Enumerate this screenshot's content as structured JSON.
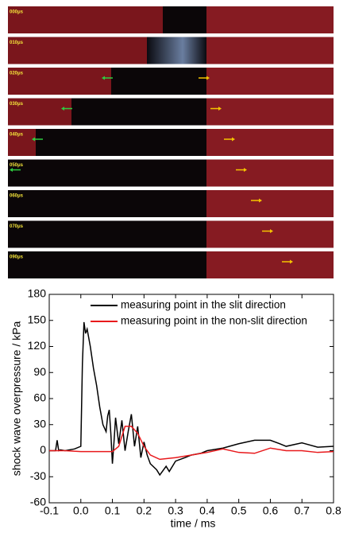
{
  "frames": [
    {
      "label": "000μs"
    },
    {
      "label": "010μs"
    },
    {
      "label": "020μs"
    },
    {
      "label": "030μs"
    },
    {
      "label": "040μs"
    },
    {
      "label": "050μs"
    },
    {
      "label": "060μs"
    },
    {
      "label": "070μs"
    },
    {
      "label": "090μs"
    }
  ],
  "chart_data": {
    "type": "line",
    "xlabel": "time / ms",
    "ylabel": "shock wave overpressure / kPa",
    "xlim": [
      -0.1,
      0.8
    ],
    "ylim": [
      -60,
      180
    ],
    "xticks": [
      -0.1,
      {
        "value": 0,
        "label": "0.0"
      },
      0.1,
      0.2,
      0.3,
      0.4,
      0.5,
      0.6,
      0.7,
      0.8
    ],
    "yticks": [
      -60,
      -30,
      0,
      30,
      60,
      90,
      120,
      150,
      180
    ],
    "legend": "upper right",
    "series": [
      {
        "name": "measuring point in the slit direction",
        "color": "#000000",
        "x": [
          -0.1,
          -0.08,
          -0.075,
          -0.07,
          -0.065,
          -0.05,
          -0.02,
          0,
          0.005,
          0.01,
          0.015,
          0.02,
          0.03,
          0.04,
          0.05,
          0.06,
          0.07,
          0.08,
          0.085,
          0.09,
          0.095,
          0.1,
          0.105,
          0.11,
          0.12,
          0.13,
          0.14,
          0.15,
          0.16,
          0.17,
          0.18,
          0.19,
          0.2,
          0.21,
          0.22,
          0.24,
          0.25,
          0.27,
          0.28,
          0.3,
          0.33,
          0.35,
          0.38,
          0.4,
          0.45,
          0.5,
          0.55,
          0.6,
          0.63,
          0.65,
          0.7,
          0.75,
          0.8
        ],
        "values": [
          0,
          0,
          12,
          0,
          1,
          0,
          2,
          5,
          100,
          148,
          135,
          140,
          120,
          95,
          75,
          50,
          30,
          22,
          40,
          47,
          20,
          -15,
          10,
          38,
          8,
          35,
          0,
          22,
          42,
          5,
          28,
          -8,
          10,
          -5,
          -15,
          -22,
          -28,
          -18,
          -24,
          -12,
          -8,
          -5,
          -3,
          0,
          3,
          8,
          12,
          12,
          8,
          5,
          9,
          4,
          5
        ]
      },
      {
        "name": "measuring point in the non-slit direction",
        "color": "#e8191c",
        "x": [
          -0.1,
          -0.05,
          0,
          0.05,
          0.1,
          0.12,
          0.14,
          0.16,
          0.18,
          0.2,
          0.22,
          0.25,
          0.3,
          0.35,
          0.4,
          0.45,
          0.5,
          0.55,
          0.6,
          0.65,
          0.7,
          0.75,
          0.8
        ],
        "values": [
          0,
          0,
          -1,
          -1,
          -1,
          5,
          28,
          28,
          20,
          5,
          -5,
          -10,
          -8,
          -5,
          -2,
          2,
          -2,
          -3,
          3,
          0,
          0,
          -2,
          -1
        ]
      }
    ]
  }
}
